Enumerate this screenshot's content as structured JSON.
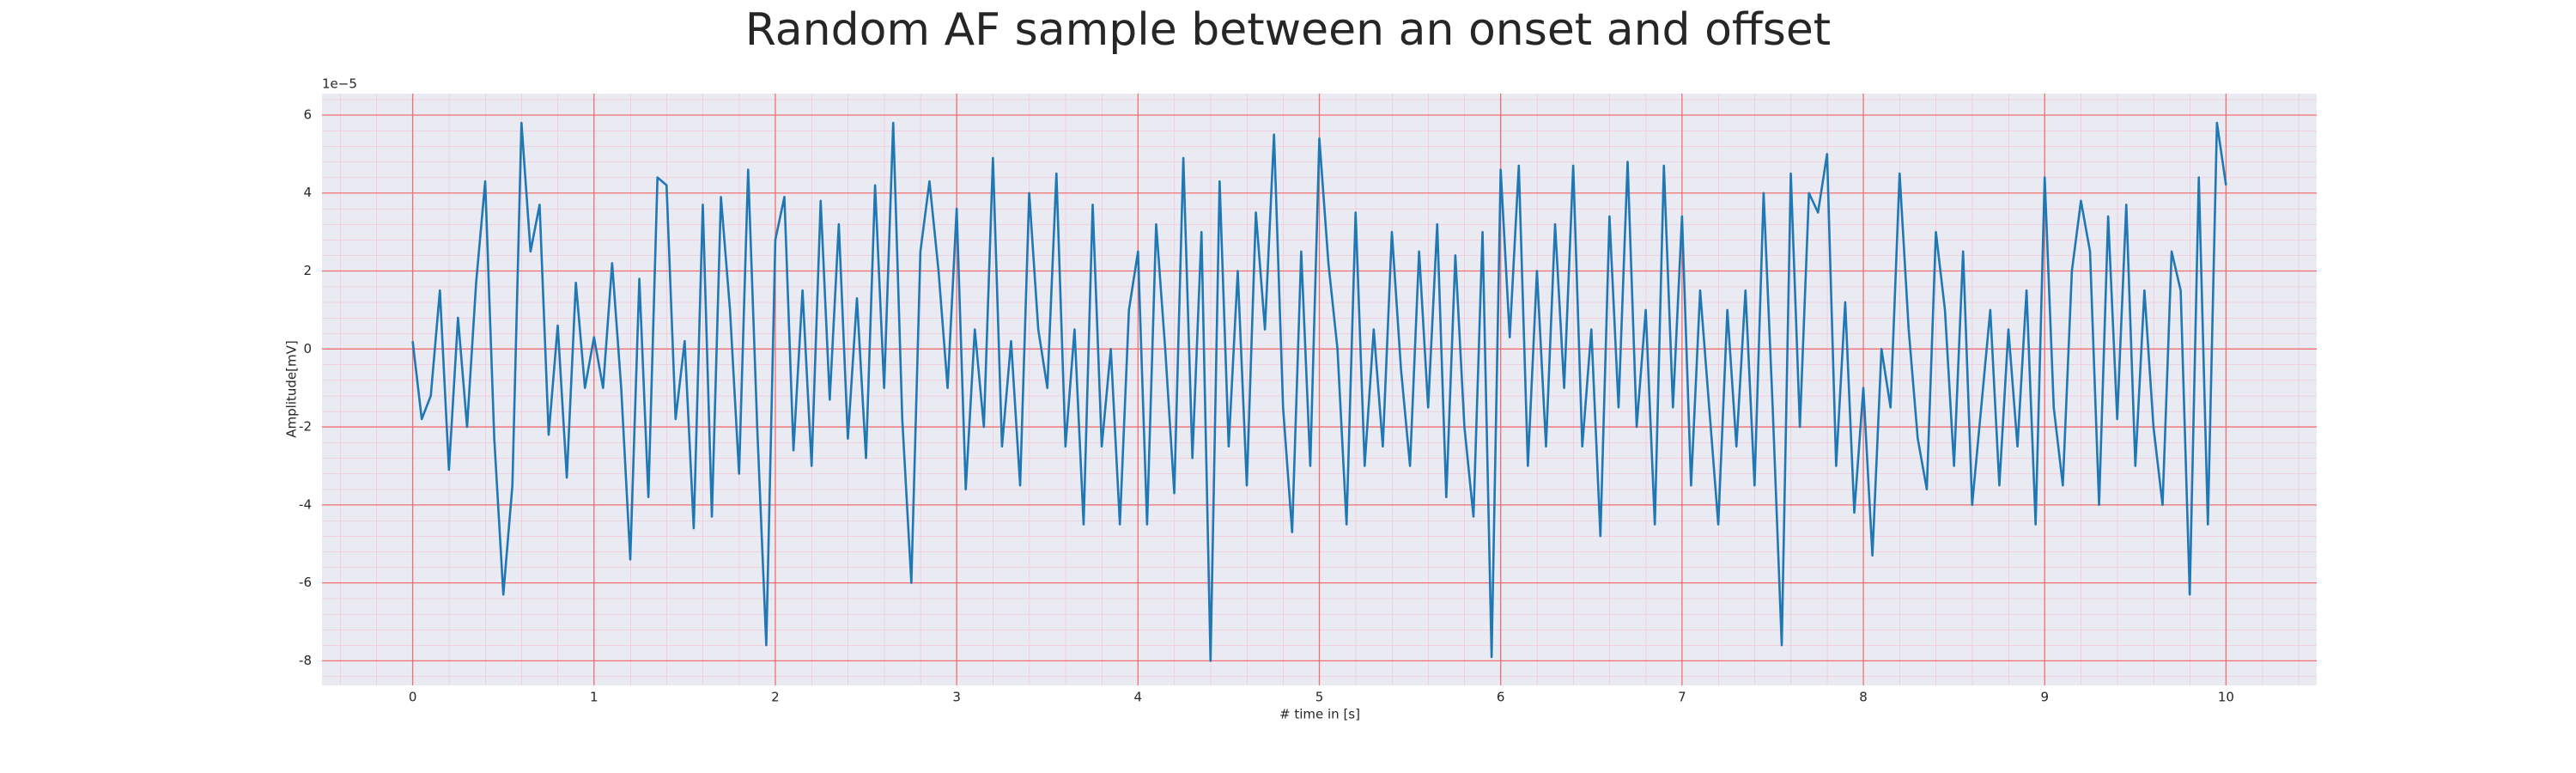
{
  "chart_data": {
    "type": "line",
    "title": "Random AF sample between an onset and offset",
    "x_label": "# time in [s]",
    "y_label": "Amplitude[mV]",
    "y_offset_text": "1e−5",
    "color": "#1f77b4",
    "background": "#eaeaf2",
    "grid": true,
    "grid_color": "#f07070",
    "minor_grid": true,
    "minor_grid_color": "#f4b8c8",
    "xlim": [
      -0.5,
      10.5
    ],
    "xticks": [
      0,
      1,
      2,
      3,
      4,
      5,
      6,
      7,
      8,
      9,
      10
    ],
    "ylim": [
      -8.63,
      6.55
    ],
    "yticks": [
      -8,
      -6,
      -4,
      -2,
      0,
      2,
      4,
      6
    ],
    "x": [
      0,
      0.05,
      0.1,
      0.15,
      0.2,
      0.25,
      0.3,
      0.35,
      0.4,
      0.45,
      0.5,
      0.55,
      0.6,
      0.65,
      0.7,
      0.75,
      0.8,
      0.85,
      0.9,
      0.95,
      1,
      1.05,
      1.1,
      1.15,
      1.2,
      1.25,
      1.3,
      1.35,
      1.4,
      1.45,
      1.5,
      1.55,
      1.6,
      1.65,
      1.7,
      1.75,
      1.8,
      1.85,
      1.9,
      1.95,
      2,
      2.05,
      2.1,
      2.15,
      2.2,
      2.25,
      2.3,
      2.35,
      2.4,
      2.45,
      2.5,
      2.55,
      2.6,
      2.65,
      2.7,
      2.75,
      2.8,
      2.85,
      2.9,
      2.95,
      3,
      3.05,
      3.1,
      3.15,
      3.2,
      3.25,
      3.3,
      3.35,
      3.4,
      3.45,
      3.5,
      3.55,
      3.6,
      3.65,
      3.7,
      3.75,
      3.8,
      3.85,
      3.9,
      3.95,
      4,
      4.05,
      4.1,
      4.15,
      4.2,
      4.25,
      4.3,
      4.35,
      4.4,
      4.45,
      4.5,
      4.55,
      4.6,
      4.65,
      4.7,
      4.75,
      4.8,
      4.85,
      4.9,
      4.95,
      5,
      5.05,
      5.1,
      5.15,
      5.2,
      5.25,
      5.3,
      5.35,
      5.4,
      5.45,
      5.5,
      5.55,
      5.6,
      5.65,
      5.7,
      5.75,
      5.8,
      5.85,
      5.9,
      5.95,
      6,
      6.05,
      6.1,
      6.15,
      6.2,
      6.25,
      6.3,
      6.35,
      6.4,
      6.45,
      6.5,
      6.55,
      6.6,
      6.65,
      6.7,
      6.75,
      6.8,
      6.85,
      6.9,
      6.95,
      7,
      7.05,
      7.1,
      7.15,
      7.2,
      7.25,
      7.3,
      7.35,
      7.4,
      7.45,
      7.5,
      7.55,
      7.6,
      7.65,
      7.7,
      7.75,
      7.8,
      7.85,
      7.9,
      7.95,
      8,
      8.05,
      8.1,
      8.15,
      8.2,
      8.25,
      8.3,
      8.35,
      8.4,
      8.45,
      8.5,
      8.55,
      8.6,
      8.65,
      8.7,
      8.75,
      8.8,
      8.85,
      8.9,
      8.95,
      9,
      9.05,
      9.1,
      9.15,
      9.2,
      9.25,
      9.3,
      9.35,
      9.4,
      9.45,
      9.5,
      9.55,
      9.6,
      9.65,
      9.7,
      9.75,
      9.8,
      9.85,
      9.9,
      9.95,
      10
    ],
    "values": [
      0.2,
      -1.8,
      -1.2,
      1.5,
      -3.1,
      0.8,
      -2.0,
      1.7,
      4.3,
      -2.3,
      -6.3,
      -3.5,
      5.8,
      2.5,
      3.7,
      -2.2,
      0.6,
      -3.3,
      1.7,
      -1.0,
      0.3,
      -1.0,
      2.2,
      -1.0,
      -5.4,
      1.8,
      -3.8,
      4.4,
      4.2,
      -1.8,
      0.2,
      -4.6,
      3.7,
      -4.3,
      3.9,
      1.0,
      -3.2,
      4.6,
      -2.0,
      -7.6,
      2.8,
      3.9,
      -2.6,
      1.5,
      -3.0,
      3.8,
      -1.3,
      3.2,
      -2.3,
      1.3,
      -2.8,
      4.2,
      -1.0,
      5.8,
      -1.8,
      -6.0,
      2.5,
      4.3,
      2.0,
      -1.0,
      3.6,
      -3.6,
      0.5,
      -2.0,
      4.9,
      -2.5,
      0.2,
      -3.5,
      4.0,
      0.5,
      -1.0,
      4.5,
      -2.5,
      0.5,
      -4.5,
      3.7,
      -2.5,
      0.0,
      -4.5,
      1.0,
      2.5,
      -4.5,
      3.2,
      0.0,
      -3.7,
      4.9,
      -2.8,
      3.0,
      -8.0,
      4.3,
      -2.5,
      2.0,
      -3.5,
      3.5,
      0.5,
      5.5,
      -1.5,
      -4.7,
      2.5,
      -3.0,
      5.4,
      2.2,
      0.0,
      -4.5,
      3.5,
      -3.0,
      0.5,
      -2.5,
      3.0,
      -0.5,
      -3.0,
      2.5,
      -1.5,
      3.2,
      -3.8,
      2.4,
      -2.0,
      -4.3,
      3.0,
      -7.9,
      4.6,
      0.3,
      4.7,
      -3.0,
      2.0,
      -2.5,
      3.2,
      -1.0,
      4.7,
      -2.5,
      0.5,
      -4.8,
      3.4,
      -1.5,
      4.8,
      -2.0,
      1.0,
      -4.5,
      4.7,
      -1.5,
      3.4,
      -3.5,
      1.5,
      -1.5,
      -4.5,
      1.0,
      -2.5,
      1.5,
      -3.5,
      4.0,
      -1.5,
      -7.6,
      4.5,
      -2.0,
      4.0,
      3.5,
      5.0,
      -3.0,
      1.2,
      -4.2,
      -1.0,
      -5.3,
      0.0,
      -1.5,
      4.5,
      0.5,
      -2.3,
      -3.6,
      3.0,
      1.0,
      -3.0,
      2.5,
      -4.0,
      -1.5,
      1.0,
      -3.5,
      0.5,
      -2.5,
      1.5,
      -4.5,
      4.4,
      -1.5,
      -3.5,
      2.0,
      3.8,
      2.5,
      -4.0,
      3.4,
      -1.8,
      3.7,
      -3.0,
      1.5,
      -2.0,
      -4.0,
      2.5,
      1.5,
      -6.3,
      4.4,
      -4.5,
      5.8,
      4.2
    ]
  }
}
